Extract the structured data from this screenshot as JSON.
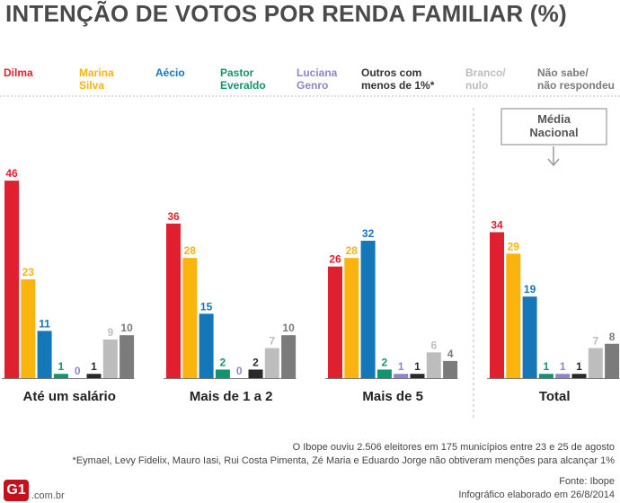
{
  "title": "INTENÇÃO DE VOTOS POR RENDA FAMILIAR (%)",
  "legend": [
    {
      "key": "dilma",
      "l1": "Dilma",
      "l2": "",
      "color": "#e0202e"
    },
    {
      "key": "marina",
      "l1": "Marina",
      "l2": "Silva",
      "color": "#f9b40d"
    },
    {
      "key": "aecio",
      "l1": "Aécio",
      "l2": "",
      "color": "#1477b8"
    },
    {
      "key": "pastor",
      "l1": "Pastor",
      "l2": "Everaldo",
      "color": "#10956c"
    },
    {
      "key": "luciana",
      "l1": "Luciana",
      "l2": "Genro",
      "color": "#8d87c4"
    },
    {
      "key": "outros",
      "l1": "Outros com",
      "l2": "menos de 1%*",
      "color": "#2a2a2a"
    },
    {
      "key": "branco",
      "l1": "Branco/",
      "l2": "nulo",
      "color": "#bdbdbd"
    },
    {
      "key": "naosabe",
      "l1": "Não sabe/",
      "l2": "não respondeu",
      "color": "#7b7b7b"
    }
  ],
  "media_nacional": {
    "l1": "Média",
    "l2": "Nacional"
  },
  "chart_data": {
    "type": "bar",
    "title": "INTENÇÃO DE VOTOS POR RENDA FAMILIAR (%)",
    "categories": [
      "Até um salário",
      "Mais de 1 a 2",
      "Mais de 5",
      "Total"
    ],
    "series": [
      {
        "name": "Dilma",
        "values": [
          46,
          36,
          26,
          34
        ]
      },
      {
        "name": "Marina Silva",
        "values": [
          23,
          28,
          28,
          29
        ]
      },
      {
        "name": "Aécio",
        "values": [
          11,
          15,
          32,
          19
        ]
      },
      {
        "name": "Pastor Everaldo",
        "values": [
          1,
          2,
          2,
          1
        ]
      },
      {
        "name": "Luciana Genro",
        "values": [
          0,
          0,
          1,
          1
        ]
      },
      {
        "name": "Outros com menos de 1%*",
        "values": [
          1,
          2,
          1,
          1
        ]
      },
      {
        "name": "Branco/nulo",
        "values": [
          9,
          7,
          6,
          7
        ]
      },
      {
        "name": "Não sabe/não respondeu",
        "values": [
          10,
          10,
          4,
          8
        ]
      }
    ],
    "xlabel": "",
    "ylabel": "%",
    "ylim": [
      0,
      50
    ],
    "grid": false,
    "legend_position": "top"
  },
  "footer": {
    "note1": "O Ibope ouviu 2.506 eleitores em 175 municípios entre 23 e 25 de agosto",
    "note2": "*Eymael, Levy Fidelix, Mauro Iasi, Rui Costa Pimenta, Zé Maria e Eduardo Jorge não obtiveram menções para alcançar 1%",
    "source": "Fonte: Ibope",
    "credit": "Infográfico elaborado em 26/8/2014"
  },
  "logo": {
    "mark": "G1",
    "suffix": ".com.br"
  }
}
